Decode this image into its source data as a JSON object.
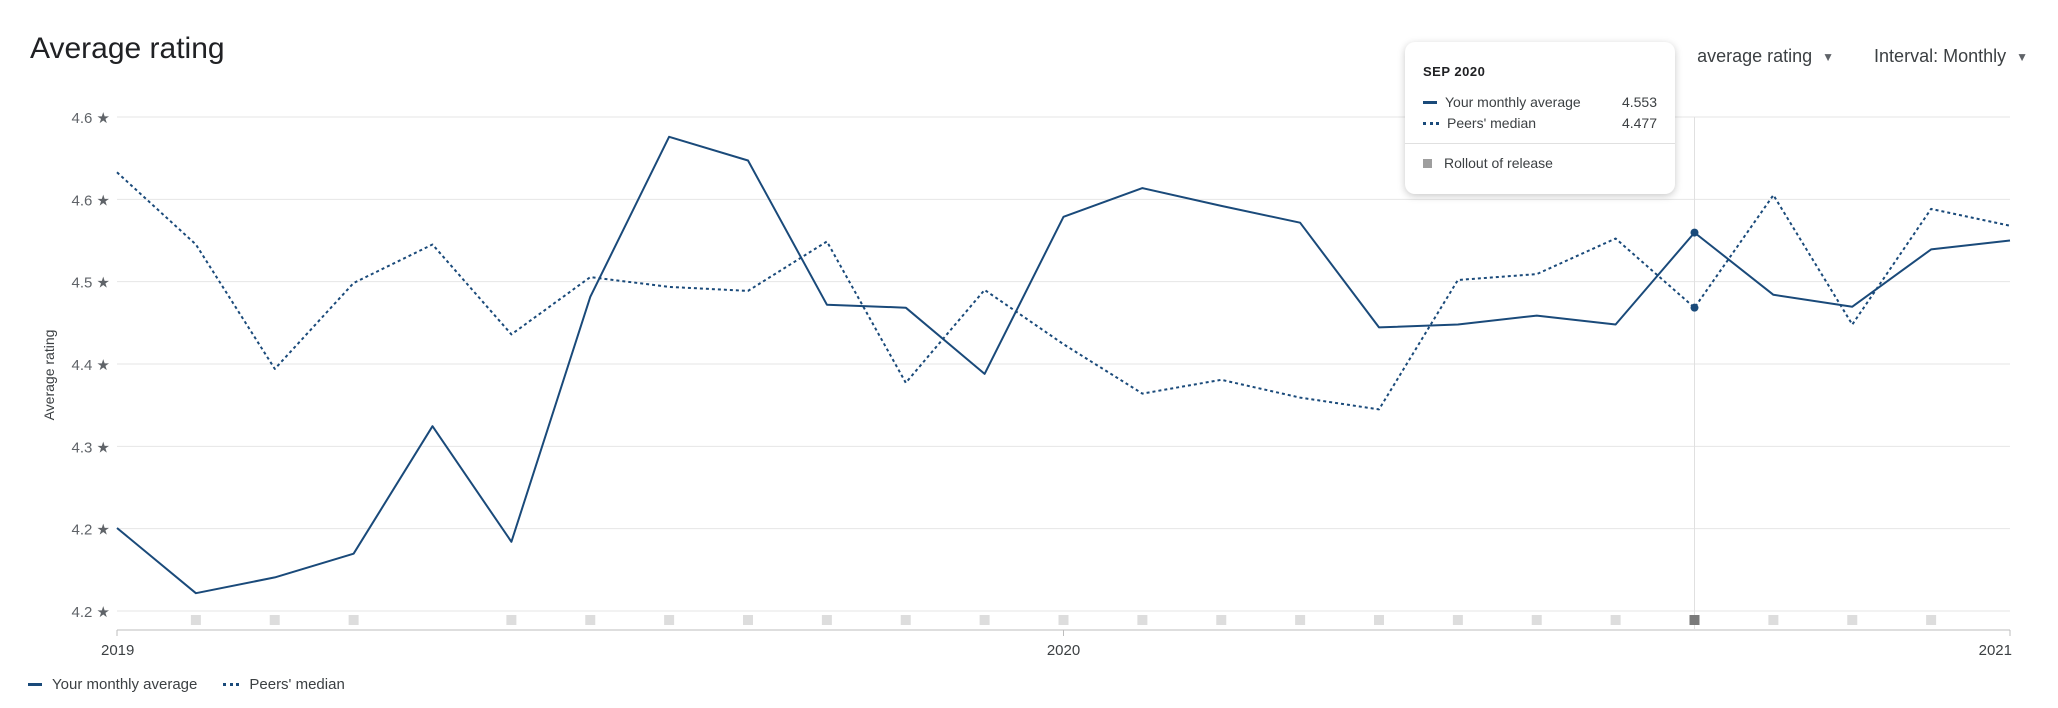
{
  "header": {
    "title": "Average rating",
    "metric_select": "average rating",
    "interval_select": "Interval: Monthly"
  },
  "tooltip": {
    "month": "SEP 2020",
    "rows": [
      {
        "label": "Your monthly average",
        "value": "4.553"
      },
      {
        "label": "Peers' median",
        "value": "4.477"
      }
    ],
    "event_label": "Rollout of release"
  },
  "legend": {
    "series1": "Your monthly average",
    "series2": "Peers' median"
  },
  "colors": {
    "series": "#1a4a7a",
    "grid": "#e6e6e6",
    "marker": "#dddddd",
    "marker_active": "#7a7a7a"
  },
  "chart_data": {
    "type": "line",
    "ylabel": "Average rating",
    "y_ticks": [
      "4.6 ★",
      "4.6 ★",
      "4.5 ★",
      "4.4 ★",
      "4.3 ★",
      "4.2 ★",
      "4.2 ★"
    ],
    "x_ticks": [
      "2019",
      "2020",
      "2021"
    ],
    "grid": true,
    "legend_position": "bottom-left",
    "x": [
      "2019-01",
      "2019-02",
      "2019-03",
      "2019-04",
      "2019-05",
      "2019-06",
      "2019-07",
      "2019-08",
      "2019-09",
      "2019-10",
      "2019-11",
      "2019-12",
      "2020-01",
      "2020-02",
      "2020-03",
      "2020-04",
      "2020-05",
      "2020-06",
      "2020-07",
      "2020-08",
      "2020-09",
      "2020-10",
      "2020-11",
      "2020-12",
      "2021-01"
    ],
    "series": [
      {
        "name": "Your monthly average",
        "style": "solid",
        "values": [
          4.254,
          4.188,
          4.204,
          4.228,
          4.357,
          4.24,
          4.488,
          4.65,
          4.626,
          4.48,
          4.477,
          4.41,
          4.569,
          4.598,
          4.58,
          4.563,
          4.457,
          4.46,
          4.469,
          4.46,
          4.553,
          4.49,
          4.478,
          4.536,
          4.545
        ]
      },
      {
        "name": "Peers' median",
        "style": "dotted",
        "values": [
          4.614,
          4.541,
          4.415,
          4.502,
          4.541,
          4.45,
          4.508,
          4.498,
          4.494,
          4.544,
          4.401,
          4.495,
          4.44,
          4.39,
          4.404,
          4.386,
          4.374,
          4.505,
          4.511,
          4.547,
          4.477,
          4.591,
          4.46,
          4.577,
          4.56
        ]
      }
    ],
    "release_markers": [
      "2019-02",
      "2019-03",
      "2019-04",
      "2019-06",
      "2019-07",
      "2019-08",
      "2019-09",
      "2019-10",
      "2019-11",
      "2019-12",
      "2020-01",
      "2020-02",
      "2020-03",
      "2020-04",
      "2020-05",
      "2020-06",
      "2020-07",
      "2020-08",
      "2020-09",
      "2020-10",
      "2020-11",
      "2020-12"
    ],
    "highlighted": "2020-09"
  }
}
